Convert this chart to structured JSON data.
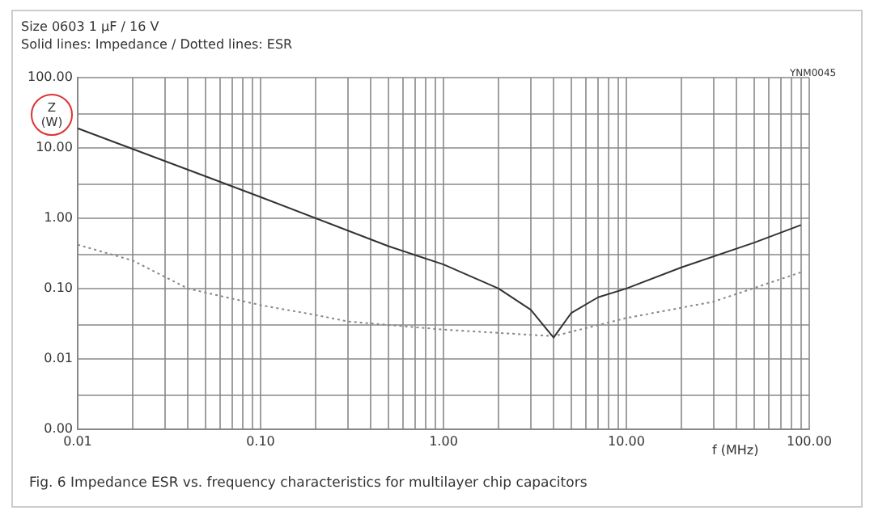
{
  "chart_data": {
    "type": "line",
    "title": "Size 0603 1 µF / 16 V",
    "subtitle": "Solid lines: Impedance / Dotted lines: ESR",
    "xlabel": "f (MHz)",
    "ylabel": "Z (W)",
    "annotations": [
      "YNM0045",
      "Fig. 6  Impedance ESR vs. frequency characteristics for multilayer chip capacitors"
    ],
    "log": "xy",
    "grid": true,
    "legend": false,
    "marker": "none",
    "xlim": [
      0.01,
      100
    ],
    "ylim": [
      0.001,
      100
    ],
    "xticks": [
      0.01,
      {
        "value": 0.02,
        "label": null
      },
      {
        "value": 0.03,
        "label": null
      },
      {
        "value": 0.04,
        "label": null
      },
      {
        "value": 0.05,
        "label": null
      },
      {
        "value": 0.06,
        "label": null
      },
      {
        "value": 0.07,
        "label": null
      },
      {
        "value": 0.08,
        "label": null
      },
      {
        "value": 0.09,
        "label": null
      },
      {
        "value": 0.1,
        "label": "0.10"
      },
      {
        "value": 0.2,
        "label": null
      },
      {
        "value": 0.3,
        "label": null
      },
      {
        "value": 0.4,
        "label": null
      },
      {
        "value": 0.5,
        "label": null
      },
      {
        "value": 0.6,
        "label": null
      },
      {
        "value": 0.7,
        "label": null
      },
      {
        "value": 0.8,
        "label": null
      },
      {
        "value": 0.9,
        "label": null
      },
      {
        "value": 1,
        "label": "1.00"
      },
      {
        "value": 2,
        "label": null
      },
      {
        "value": 3,
        "label": null
      },
      {
        "value": 4,
        "label": null
      },
      {
        "value": 5,
        "label": null
      },
      {
        "value": 6,
        "label": null
      },
      {
        "value": 7,
        "label": null
      },
      {
        "value": 8,
        "label": null
      },
      {
        "value": 9,
        "label": null
      },
      {
        "value": 10,
        "label": "10.00"
      },
      {
        "value": 20,
        "label": null
      },
      {
        "value": 30,
        "label": null
      },
      {
        "value": 40,
        "label": null
      },
      {
        "value": 50,
        "label": null
      },
      {
        "value": 60,
        "label": null
      },
      {
        "value": 70,
        "label": null
      },
      {
        "value": 80,
        "label": null
      },
      {
        "value": 90,
        "label": null
      },
      {
        "value": 100,
        "label": "100.00"
      }
    ],
    "yticks": [
      {
        "value": 0.001,
        "label": "0.00"
      },
      {
        "value": 0.003,
        "label": null
      },
      0.01,
      {
        "value": 0.03,
        "label": null
      },
      {
        "value": 0.1,
        "label": "0.10"
      },
      {
        "value": 0.3,
        "label": null
      },
      {
        "value": 1,
        "label": "1.00"
      },
      {
        "value": 3,
        "label": null
      },
      {
        "value": 10,
        "label": "10.00"
      },
      {
        "value": 30,
        "label": null
      },
      {
        "value": 100,
        "label": "100.00"
      }
    ],
    "series": [
      {
        "color": "#333333",
        "line_style": "solid",
        "x": [
          0.01,
          0.1,
          0.5,
          1,
          2,
          3,
          4,
          5,
          7,
          10,
          20,
          50,
          90
        ],
        "values": [
          19,
          2.0,
          0.4,
          0.22,
          0.1,
          0.05,
          0.02,
          0.045,
          0.075,
          0.1,
          0.2,
          0.45,
          0.8
        ]
      },
      {
        "color": "#888888",
        "line_style": "dotted",
        "x": [
          0.01,
          0.02,
          0.04,
          0.1,
          0.2,
          0.3,
          1,
          4,
          10,
          30,
          90
        ],
        "values": [
          0.42,
          0.25,
          0.1,
          0.058,
          0.042,
          0.034,
          0.026,
          0.021,
          0.038,
          0.065,
          0.17
        ]
      }
    ]
  }
}
